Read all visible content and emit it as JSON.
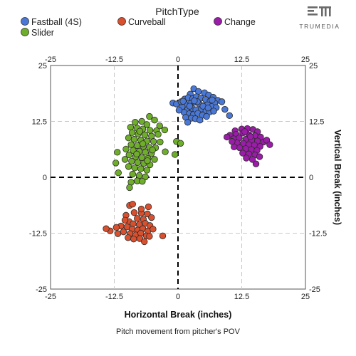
{
  "brand": {
    "name": "TRUMEDIA",
    "icon": "trumedia-logo-icon"
  },
  "legend": {
    "title": "PitchType",
    "items": [
      {
        "name": "Fastball (4S)",
        "color": "#4a78d6"
      },
      {
        "name": "Curveball",
        "color": "#d9502e"
      },
      {
        "name": "Change",
        "color": "#9b1ca8"
      },
      {
        "name": "Slider",
        "color": "#6fae2a"
      }
    ]
  },
  "caption": "Pitch movement from pitcher's POV",
  "chart_data": {
    "type": "scatter",
    "xlabel": "Horizontal Break (inches)",
    "ylabel": "Vertical Break (inches)",
    "xlim": [
      -25,
      25
    ],
    "ylim": [
      -25,
      25
    ],
    "ticks": [
      -25,
      -12.5,
      0,
      12.5,
      25
    ],
    "tick_labels": [
      "-25",
      "-12.5",
      "0",
      "12.5",
      "25"
    ],
    "grid": true,
    "legend_position": "top",
    "series": [
      {
        "name": "Fastball (4S)",
        "color": "#4a78d6",
        "points": [
          [
            2.4,
            18.6
          ],
          [
            3.1,
            19.8
          ],
          [
            4.0,
            19.2
          ],
          [
            5.2,
            18.9
          ],
          [
            6.0,
            18.4
          ],
          [
            6.9,
            17.9
          ],
          [
            7.8,
            17.2
          ],
          [
            8.6,
            16.9
          ],
          [
            1.3,
            17.5
          ],
          [
            2.0,
            17.8
          ],
          [
            2.9,
            17.6
          ],
          [
            3.6,
            18.0
          ],
          [
            4.5,
            17.7
          ],
          [
            5.4,
            17.4
          ],
          [
            6.3,
            17.0
          ],
          [
            7.2,
            16.6
          ],
          [
            1.6,
            16.3
          ],
          [
            2.5,
            16.5
          ],
          [
            3.3,
            16.8
          ],
          [
            4.2,
            16.4
          ],
          [
            5.0,
            16.0
          ],
          [
            5.8,
            16.2
          ],
          [
            6.6,
            15.8
          ],
          [
            7.5,
            15.6
          ],
          [
            0.8,
            15.8
          ],
          [
            1.9,
            15.2
          ],
          [
            2.8,
            15.4
          ],
          [
            3.5,
            15.1
          ],
          [
            4.6,
            15.3
          ],
          [
            5.5,
            14.9
          ],
          [
            6.2,
            14.6
          ],
          [
            7.0,
            14.8
          ],
          [
            1.2,
            14.5
          ],
          [
            2.2,
            14.2
          ],
          [
            3.0,
            14.0
          ],
          [
            3.9,
            14.3
          ],
          [
            4.8,
            13.9
          ],
          [
            5.6,
            13.6
          ],
          [
            1.5,
            13.4
          ],
          [
            2.6,
            13.2
          ],
          [
            3.4,
            13.1
          ],
          [
            4.3,
            12.8
          ],
          [
            0.2,
            15.0
          ],
          [
            -1.0,
            16.6
          ],
          [
            -0.3,
            16.4
          ],
          [
            0.6,
            16.9
          ],
          [
            9.2,
            15.2
          ],
          [
            10.1,
            13.8
          ],
          [
            1.9,
            12.3
          ],
          [
            3.8,
            16.9
          ],
          [
            4.9,
            15.9
          ],
          [
            6.7,
            17.3
          ],
          [
            2.3,
            15.9
          ],
          [
            5.9,
            15.5
          ],
          [
            3.2,
            17.1
          ],
          [
            1.0,
            17.0
          ]
        ]
      },
      {
        "name": "Curveball",
        "color": "#d9502e",
        "points": [
          [
            -9.5,
            -6.3
          ],
          [
            -5.8,
            -6.6
          ],
          [
            -8.6,
            -7.9
          ],
          [
            -7.2,
            -8.0
          ],
          [
            -6.0,
            -8.2
          ],
          [
            -10.2,
            -8.5
          ],
          [
            -8.0,
            -9.2
          ],
          [
            -6.8,
            -9.4
          ],
          [
            -5.2,
            -9.0
          ],
          [
            -9.6,
            -9.9
          ],
          [
            -8.8,
            -10.4
          ],
          [
            -7.6,
            -10.6
          ],
          [
            -6.4,
            -10.3
          ],
          [
            -5.5,
            -10.8
          ],
          [
            -11.2,
            -10.9
          ],
          [
            -10.0,
            -11.1
          ],
          [
            -9.0,
            -11.6
          ],
          [
            -7.9,
            -11.8
          ],
          [
            -6.9,
            -11.5
          ],
          [
            -5.9,
            -12.0
          ],
          [
            -10.7,
            -12.2
          ],
          [
            -9.4,
            -12.6
          ],
          [
            -8.3,
            -12.9
          ],
          [
            -7.3,
            -12.5
          ],
          [
            -6.2,
            -13.1
          ],
          [
            -11.8,
            -12.6
          ],
          [
            -13.3,
            -12.0
          ],
          [
            -14.1,
            -11.5
          ],
          [
            -9.8,
            -13.5
          ],
          [
            -8.7,
            -13.8
          ],
          [
            -7.5,
            -13.7
          ],
          [
            -6.6,
            -14.4
          ],
          [
            -5.6,
            -13.2
          ],
          [
            -3.0,
            -13.1
          ],
          [
            -7.2,
            -7.1
          ],
          [
            -8.9,
            -6.0
          ],
          [
            -4.9,
            -11.6
          ],
          [
            -10.4,
            -9.6
          ],
          [
            -12.1,
            -11.2
          ]
        ]
      },
      {
        "name": "Change",
        "color": "#9b1ca8",
        "points": [
          [
            11.2,
            10.4
          ],
          [
            12.5,
            10.8
          ],
          [
            13.6,
            10.9
          ],
          [
            14.7,
            10.7
          ],
          [
            15.6,
            10.2
          ],
          [
            10.2,
            9.4
          ],
          [
            11.4,
            9.6
          ],
          [
            12.7,
            9.9
          ],
          [
            13.9,
            9.5
          ],
          [
            15.1,
            9.3
          ],
          [
            16.2,
            9.0
          ],
          [
            10.9,
            8.6
          ],
          [
            12.0,
            8.8
          ],
          [
            13.3,
            8.5
          ],
          [
            14.5,
            8.3
          ],
          [
            15.6,
            8.1
          ],
          [
            16.8,
            7.9
          ],
          [
            11.6,
            7.7
          ],
          [
            12.8,
            7.6
          ],
          [
            13.9,
            7.3
          ],
          [
            15.0,
            7.2
          ],
          [
            16.1,
            6.9
          ],
          [
            12.1,
            6.6
          ],
          [
            13.3,
            6.4
          ],
          [
            14.4,
            6.2
          ],
          [
            15.5,
            6.0
          ],
          [
            12.7,
            5.4
          ],
          [
            13.9,
            5.2
          ],
          [
            15.1,
            5.0
          ],
          [
            16.0,
            4.6
          ],
          [
            13.4,
            4.3
          ],
          [
            14.6,
            4.0
          ],
          [
            15.3,
            3.0
          ],
          [
            11.0,
            6.8
          ],
          [
            10.6,
            8.0
          ],
          [
            17.4,
            8.3
          ],
          [
            18.0,
            7.3
          ],
          [
            9.6,
            9.0
          ],
          [
            13.1,
            10.2
          ],
          [
            14.2,
            9.1
          ]
        ]
      },
      {
        "name": "Slider",
        "color": "#6fae2a",
        "points": [
          [
            -5.6,
            13.6
          ],
          [
            -4.6,
            12.8
          ],
          [
            -8.4,
            12.3
          ],
          [
            -7.1,
            12.5
          ],
          [
            -6.1,
            11.8
          ],
          [
            -3.6,
            11.5
          ],
          [
            -9.3,
            11.2
          ],
          [
            -8.0,
            11.0
          ],
          [
            -6.9,
            10.8
          ],
          [
            -5.5,
            10.5
          ],
          [
            -4.2,
            10.4
          ],
          [
            -2.6,
            10.6
          ],
          [
            -9.0,
            10.0
          ],
          [
            -7.8,
            9.7
          ],
          [
            -6.5,
            9.5
          ],
          [
            -5.2,
            9.2
          ],
          [
            -3.9,
            9.6
          ],
          [
            -9.7,
            8.8
          ],
          [
            -8.6,
            8.5
          ],
          [
            -7.3,
            8.3
          ],
          [
            -6.1,
            8.1
          ],
          [
            -4.8,
            8.0
          ],
          [
            -3.5,
            7.9
          ],
          [
            -9.2,
            7.3
          ],
          [
            -8.0,
            7.1
          ],
          [
            -6.8,
            6.9
          ],
          [
            -5.6,
            6.7
          ],
          [
            -4.4,
            6.6
          ],
          [
            -10.2,
            6.3
          ],
          [
            -8.8,
            6.0
          ],
          [
            -7.6,
            5.8
          ],
          [
            -6.4,
            5.6
          ],
          [
            -5.2,
            5.3
          ],
          [
            -9.6,
            5.0
          ],
          [
            -8.3,
            4.6
          ],
          [
            -7.1,
            4.4
          ],
          [
            -5.9,
            4.2
          ],
          [
            -4.6,
            4.0
          ],
          [
            -10.4,
            4.0
          ],
          [
            -9.1,
            3.6
          ],
          [
            -7.9,
            3.3
          ],
          [
            -6.7,
            3.1
          ],
          [
            -5.5,
            2.8
          ],
          [
            -9.7,
            2.4
          ],
          [
            -8.5,
            2.1
          ],
          [
            -7.3,
            1.9
          ],
          [
            -6.1,
            1.6
          ],
          [
            -8.9,
            0.7
          ],
          [
            -7.6,
            0.4
          ],
          [
            -6.4,
            0.1
          ],
          [
            -8.0,
            -0.8
          ],
          [
            -7.0,
            -0.9
          ],
          [
            -9.2,
            -1.1
          ],
          [
            -9.5,
            -2.3
          ],
          [
            -2.5,
            5.7
          ],
          [
            -0.3,
            8.0
          ],
          [
            -0.6,
            5.1
          ],
          [
            0.5,
            7.6
          ],
          [
            -11.9,
            5.6
          ],
          [
            -12.2,
            3.2
          ],
          [
            -11.7,
            1.0
          ],
          [
            -7.5,
            10.3
          ],
          [
            -6.0,
            3.7
          ],
          [
            -8.1,
            5.2
          ],
          [
            -5.0,
            6.1
          ],
          [
            -6.9,
            7.5
          ]
        ]
      }
    ]
  }
}
